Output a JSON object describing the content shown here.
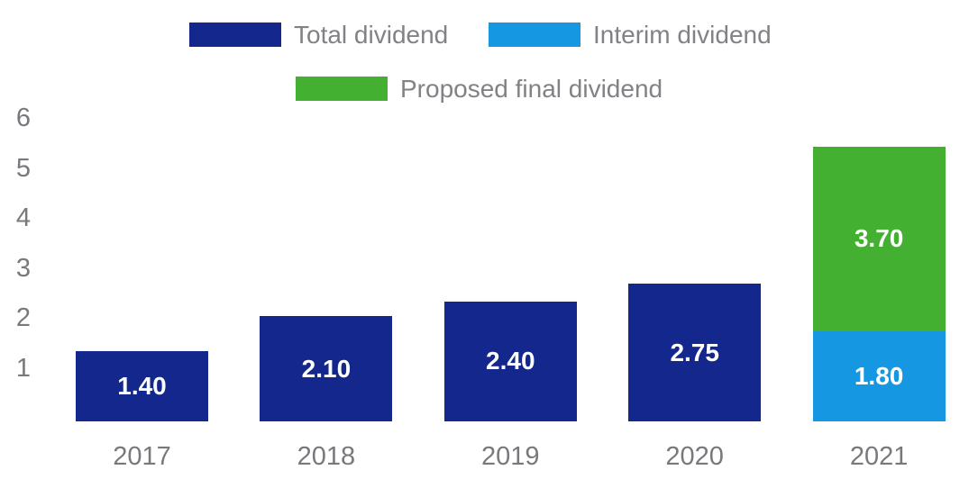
{
  "chart_data": {
    "type": "bar",
    "stacked": true,
    "title": "",
    "xlabel": "",
    "ylabel": "",
    "categories": [
      "2017",
      "2018",
      "2019",
      "2020",
      "2021"
    ],
    "series": [
      {
        "key": "total-dividend",
        "name": "Total dividend",
        "color": "#13278d",
        "values": [
          1.4,
          2.1,
          2.4,
          2.75,
          0
        ],
        "labels": [
          "1.40",
          "2.10",
          "2.40",
          "2.75",
          ""
        ]
      },
      {
        "key": "interim-dividend",
        "name": "Interim dividend",
        "color": "#1697e2",
        "values": [
          0,
          0,
          0,
          0,
          1.8
        ],
        "labels": [
          "",
          "",
          "",
          "",
          "1.80"
        ]
      },
      {
        "key": "proposed-final-dividend",
        "name": "Proposed final dividend",
        "color": "#44b032",
        "values": [
          0,
          0,
          0,
          0,
          3.7
        ],
        "labels": [
          "",
          "",
          "",
          "",
          "3.70"
        ]
      }
    ],
    "y_ticks": [
      1,
      2,
      3,
      4,
      5,
      6
    ],
    "ylim": [
      0,
      6
    ],
    "grid": false,
    "legend_position": "top",
    "value_label_color": "#ffffff",
    "axis_text_color": "#77797c",
    "legend_text_color": "#808285"
  },
  "legend": {
    "items": [
      {
        "label": "Total dividend",
        "color": "#13278d"
      },
      {
        "label": "Interim dividend",
        "color": "#1697e2"
      },
      {
        "label": "Proposed final dividend",
        "color": "#44b032"
      }
    ]
  }
}
